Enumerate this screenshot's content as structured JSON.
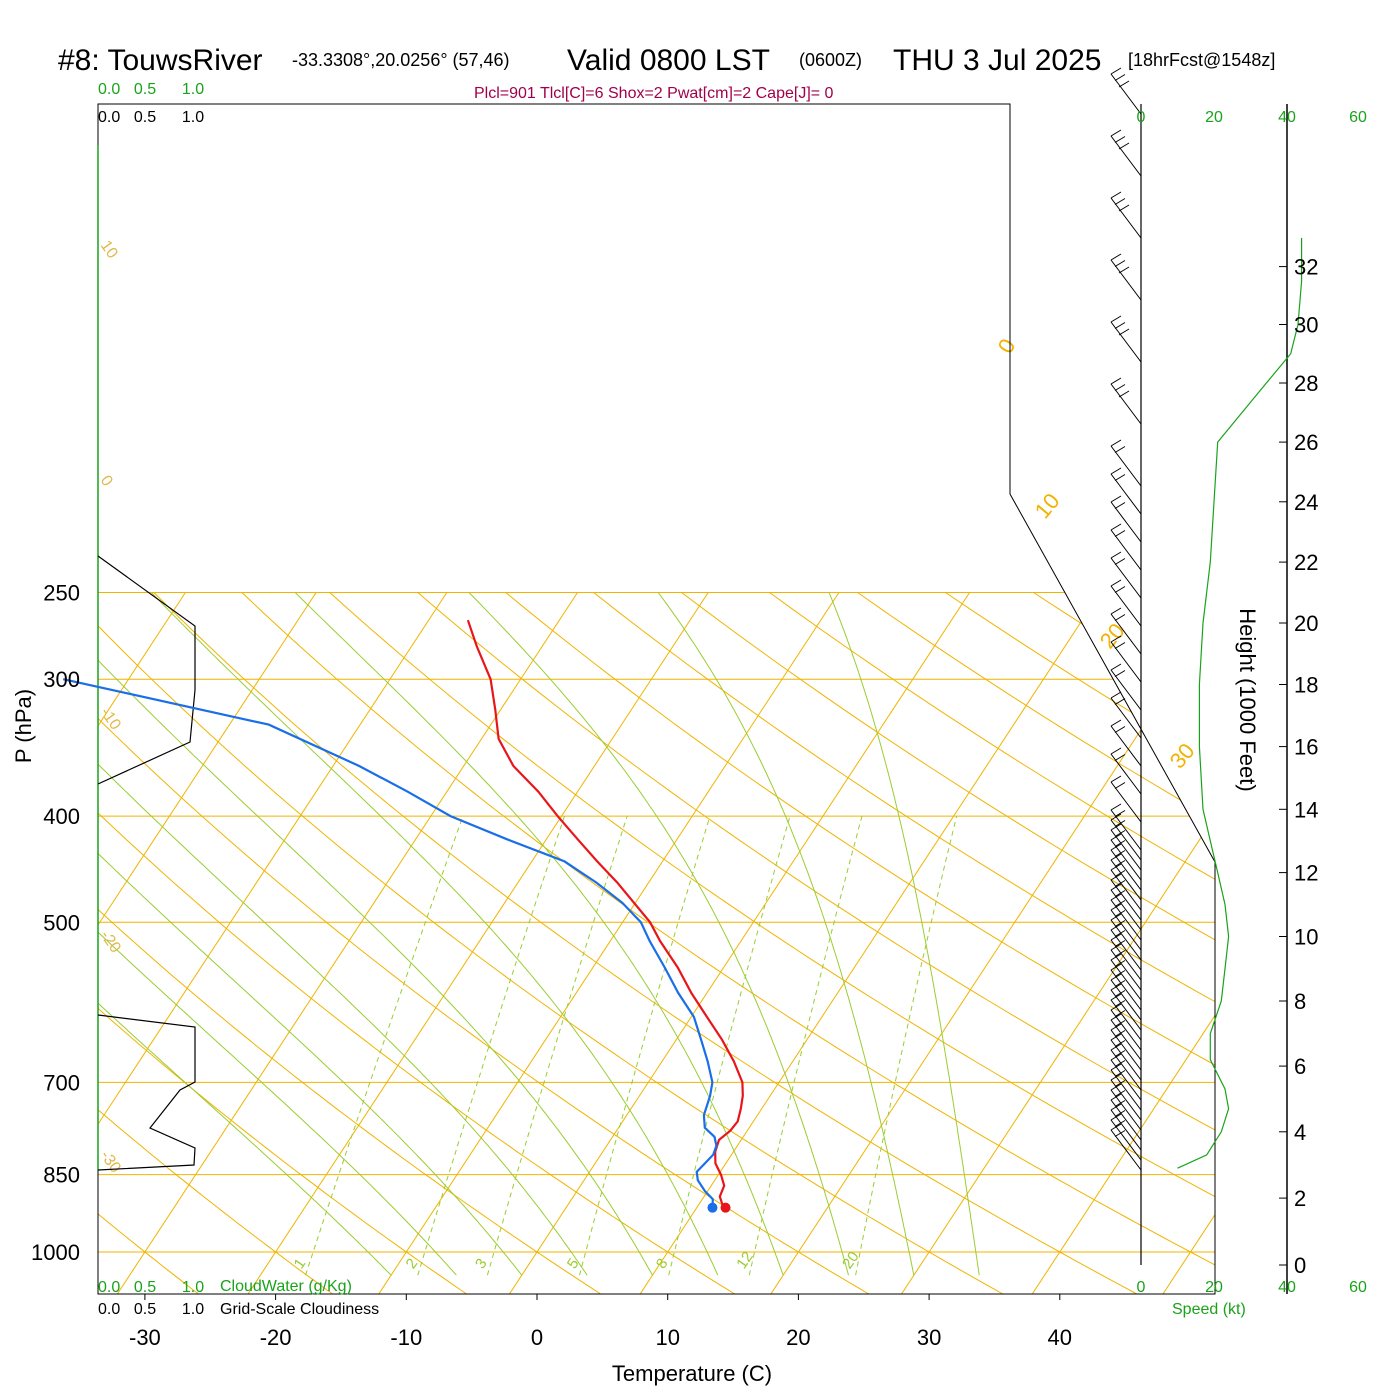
{
  "title": {
    "station": "#8: TouwsRiver",
    "coords": "-33.3308°,20.0256° (57,46)",
    "valid": "Valid 0800 LST",
    "zulu": "(0600Z)",
    "date": "THU 3 Jul 2025",
    "forecast": "[18hrFcst@1548z]"
  },
  "indices": "Plcl=901 Tlcl[C]=6 Shox=2 Pwat[cm]=2 Cape[J]= 0",
  "axes": {
    "xlabel": "Temperature (C)",
    "ylabel": "P (hPa)",
    "y2label": "Height (1000 Feet)",
    "speed_label": "Speed (kt)",
    "cloudwater_label": "CloudWater (g/Kg)",
    "cloudiness_label": "Grid-Scale Cloudiness",
    "cloud_ticks": [
      "0.0",
      "0.5",
      "1.0"
    ],
    "speed_ticks": [
      "0",
      "20",
      "40",
      "60"
    ]
  },
  "colors": {
    "temperature": "#e8161b",
    "dewpoint": "#1a6ee8",
    "isotherm": "#f0b400",
    "dry_adiabat": "#f0b400",
    "moist_adiabat": "#9acd32",
    "mixing_ratio": "#9acd32",
    "green_text": "#1aa31a",
    "index_text": "#a0004b"
  },
  "chart_data": {
    "type": "line",
    "pressure_ticks": [
      250,
      300,
      400,
      500,
      700,
      850,
      1000
    ],
    "temperature_ticks": [
      -30,
      -20,
      -10,
      0,
      10,
      20,
      30,
      40
    ],
    "height_ticks_kft": [
      0,
      2,
      4,
      6,
      8,
      10,
      12,
      14,
      16,
      18,
      20,
      22,
      24,
      26,
      28,
      30,
      32
    ],
    "isotherm_labels": [
      "0",
      "10",
      "20",
      "30"
    ],
    "dry_adiabat_labels": [
      "10",
      "0",
      "-10",
      "-20",
      "-30"
    ],
    "mixing_ratio_labels": [
      "1",
      "2",
      "3",
      "5",
      "8",
      "12",
      "20"
    ],
    "series": [
      {
        "name": "temperature",
        "p": [
          911,
          905,
          890,
          870,
          850,
          830,
          810,
          790,
          775,
          760,
          740,
          720,
          700,
          670,
          640,
          610,
          580,
          550,
          520,
          500,
          480,
          460,
          440,
          420,
          400,
          380,
          360,
          340,
          320,
          300,
          280,
          265
        ],
        "t": [
          12.2,
          11.8,
          11.2,
          11.0,
          10.2,
          9.2,
          8.6,
          8.3,
          8.7,
          8.8,
          8.4,
          7.9,
          7.2,
          5.5,
          3.5,
          1.2,
          -1.2,
          -3.5,
          -6.2,
          -7.9,
          -10.1,
          -12.4,
          -15.0,
          -17.6,
          -20.3,
          -23.0,
          -26.2,
          -28.7,
          -30.4,
          -32.3,
          -35.0,
          -37.0
        ]
      },
      {
        "name": "dewpoint",
        "p": [
          911,
          895,
          880,
          860,
          845,
          830,
          815,
          800,
          785,
          770,
          750,
          720,
          700,
          670,
          640,
          610,
          580,
          550,
          520,
          500,
          480,
          460,
          440,
          420,
          400,
          380,
          360,
          330,
          300
        ],
        "t": [
          11.2,
          10.8,
          9.8,
          8.7,
          8.2,
          8.4,
          8.6,
          8.4,
          7.8,
          6.6,
          5.9,
          5.4,
          4.9,
          3.5,
          1.9,
          0.2,
          -2.2,
          -4.5,
          -7.0,
          -8.6,
          -11.0,
          -14.0,
          -17.5,
          -23.0,
          -28.5,
          -33.0,
          -38.0,
          -47.0,
          -65.0
        ]
      }
    ],
    "wind_speed_profile": {
      "height_kft": [
        2.9,
        3.3,
        4.0,
        4.7,
        5.3,
        6.2,
        7.0,
        8.0,
        9.0,
        10.0,
        11.0,
        12.0,
        13.0,
        14.0,
        16.0,
        18.0,
        20.0,
        22.0,
        24.0,
        26.0,
        27.5,
        29.0,
        30.0,
        31.5,
        33.0
      ],
      "speed_kt": [
        10,
        18,
        22,
        24,
        23,
        19,
        19,
        22,
        23,
        24,
        23,
        21,
        19,
        17,
        16,
        16,
        17,
        19,
        20,
        21,
        31,
        41,
        43,
        44,
        44
      ]
    }
  }
}
